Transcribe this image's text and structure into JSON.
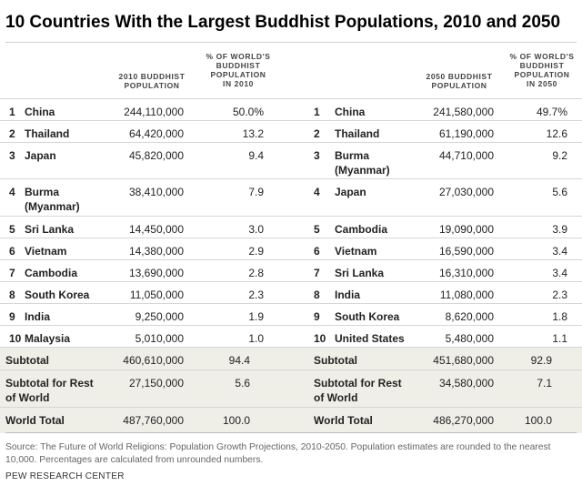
{
  "title": "10 Countries With the Largest Buddhist Populations, 2010 and 2050",
  "headers": {
    "pop_2010": [
      "2010 BUDDHIST",
      "POPULATION"
    ],
    "pct_2010": [
      "% OF WORLD'S",
      "BUDDHIST",
      "POPULATION",
      "IN 2010"
    ],
    "pop_2050": [
      "2050 BUDDHIST",
      "POPULATION"
    ],
    "pct_2050": [
      "% OF WORLD'S",
      "BUDDHIST",
      "POPULATION",
      "IN 2050"
    ]
  },
  "rows": [
    {
      "r1": "1",
      "c1": [
        "China"
      ],
      "p1": "244,110,000",
      "s1": "50.0%",
      "r2": "1",
      "c2": [
        "China"
      ],
      "p2": "241,580,000",
      "s2": "49.7%"
    },
    {
      "r1": "2",
      "c1": [
        "Thailand"
      ],
      "p1": "64,420,000",
      "s1": "13.2",
      "r2": "2",
      "c2": [
        "Thailand"
      ],
      "p2": "61,190,000",
      "s2": "12.6"
    },
    {
      "r1": "3",
      "c1": [
        "Japan"
      ],
      "p1": "45,820,000",
      "s1": "9.4",
      "r2": "3",
      "c2": [
        "Burma",
        "(Myanmar)"
      ],
      "p2": "44,710,000",
      "s2": "9.2"
    },
    {
      "r1": "4",
      "c1": [
        "Burma",
        "(Myanmar)"
      ],
      "p1": "38,410,000",
      "s1": "7.9",
      "r2": "4",
      "c2": [
        "Japan"
      ],
      "p2": "27,030,000",
      "s2": "5.6"
    },
    {
      "r1": "5",
      "c1": [
        "Sri Lanka"
      ],
      "p1": "14,450,000",
      "s1": "3.0",
      "r2": "5",
      "c2": [
        "Cambodia"
      ],
      "p2": "19,090,000",
      "s2": "3.9"
    },
    {
      "r1": "6",
      "c1": [
        "Vietnam"
      ],
      "p1": "14,380,000",
      "s1": "2.9",
      "r2": "6",
      "c2": [
        "Vietnam"
      ],
      "p2": "16,590,000",
      "s2": "3.4"
    },
    {
      "r1": "7",
      "c1": [
        "Cambodia"
      ],
      "p1": "13,690,000",
      "s1": "2.8",
      "r2": "7",
      "c2": [
        "Sri Lanka"
      ],
      "p2": "16,310,000",
      "s2": "3.4"
    },
    {
      "r1": "8",
      "c1": [
        "South Korea"
      ],
      "p1": "11,050,000",
      "s1": "2.3",
      "r2": "8",
      "c2": [
        "India"
      ],
      "p2": "11,080,000",
      "s2": "2.3"
    },
    {
      "r1": "9",
      "c1": [
        "India"
      ],
      "p1": "9,250,000",
      "s1": "1.9",
      "r2": "9",
      "c2": [
        "South Korea"
      ],
      "p2": "8,620,000",
      "s2": "1.8"
    },
    {
      "r1": "10",
      "c1": [
        "Malaysia"
      ],
      "p1": "5,010,000",
      "s1": "1.0",
      "r2": "10",
      "c2": [
        "United States"
      ],
      "p2": "5,480,000",
      "s2": "1.1"
    }
  ],
  "subtotals": [
    {
      "label1": [
        "Subtotal"
      ],
      "p1": "460,610,000",
      "s1": "94.4",
      "label2": [
        "Subtotal"
      ],
      "p2": "451,680,000",
      "s2": "92.9"
    },
    {
      "label1": [
        "Subtotal for Rest",
        "of World"
      ],
      "p1": "27,150,000",
      "s1": "5.6",
      "label2": [
        "Subtotal for Rest",
        "of World"
      ],
      "p2": "34,580,000",
      "s2": "7.1"
    },
    {
      "label1": [
        "World Total"
      ],
      "p1": "487,760,000",
      "s1": "100.0",
      "label2": [
        "World Total"
      ],
      "p2": "486,270,000",
      "s2": "100.0"
    }
  ],
  "source": "Source: The Future of World Religions: Population Growth Projections, 2010-2050. Population estimates are rounded to the nearest 10,000. Percentages are calculated from unrounded numbers.",
  "org": "PEW RESEARCH CENTER"
}
